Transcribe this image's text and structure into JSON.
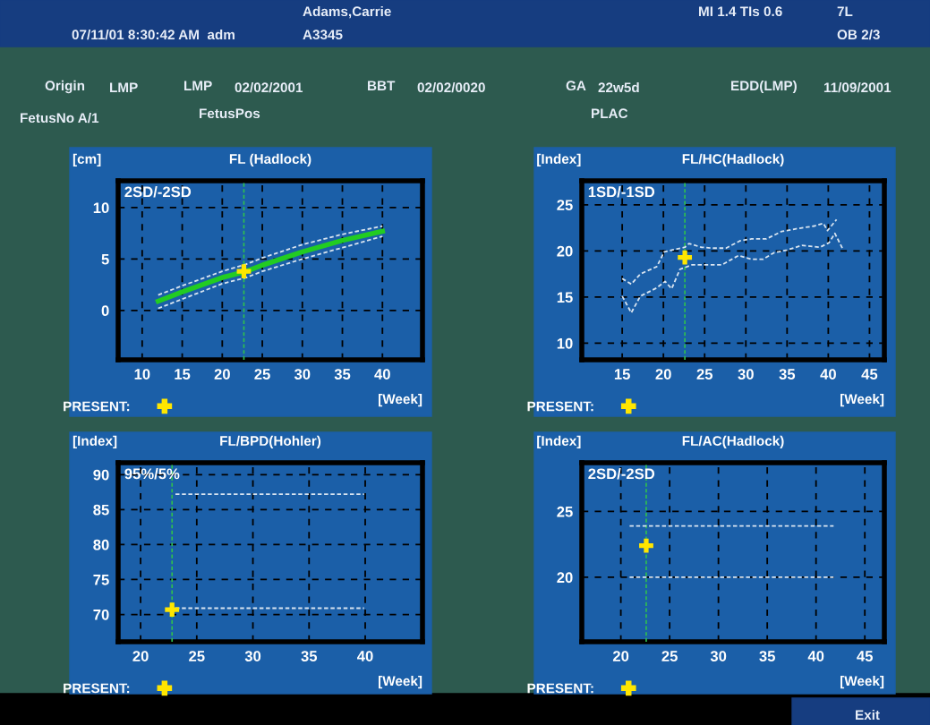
{
  "chart_data": [
    {
      "type": "other",
      "annotations": [
        "07/11/01 8:30:42 AM  adm",
        "Adams,Carrie",
        "A3345",
        "MI 1.4 TIs 0.6",
        "7L",
        "OB 2/3",
        "Origin",
        "LMP",
        "LMP",
        "02/02/2001",
        "BBT",
        "02/02/0020",
        "GA",
        "22w5d",
        "EDD(LMP)",
        "11/09/2001",
        "FetusNo A/1",
        "FetusPos",
        "PLAC",
        "Exit"
      ]
    },
    {
      "type": "line",
      "title": "FL (Hadlock)",
      "ylabel": "[cm]",
      "xlabel": "[Week]",
      "xlim": [
        7,
        45
      ],
      "ylim": [
        -4.8,
        12.6
      ],
      "xticks": [
        10,
        15,
        20,
        25,
        30,
        35,
        40
      ],
      "yticks": [
        0,
        5,
        10
      ],
      "grid": true,
      "legend": "bottom",
      "annotations": [
        "2SD/-2SD"
      ],
      "ref_lines": [
        {
          "axis": "x",
          "value": 22.7,
          "color": "#2fbf4f",
          "line_style": "dashed"
        }
      ],
      "series": [
        {
          "type": "line",
          "color": "#22cc22",
          "x": [
            12,
            15,
            20,
            23,
            25,
            30,
            35,
            40
          ],
          "values": [
            0.9,
            1.8,
            3.2,
            3.8,
            4.4,
            5.7,
            6.8,
            7.7
          ]
        },
        {
          "type": "line",
          "color": "#d8e4f0",
          "line_style": "dashed",
          "x": [
            12,
            15,
            20,
            23,
            25,
            30,
            35,
            40
          ],
          "values": [
            1.5,
            2.4,
            3.8,
            4.5,
            5.1,
            6.4,
            7.4,
            8.2
          ]
        },
        {
          "type": "line",
          "color": "#d8e4f0",
          "line_style": "dashed",
          "x": [
            12,
            15,
            20,
            23,
            25,
            30,
            35,
            40
          ],
          "values": [
            0.2,
            1.1,
            2.6,
            3.2,
            3.8,
            5.0,
            6.1,
            7.2
          ]
        },
        {
          "type": "scatter",
          "name": "PRESENT:",
          "color": "#ffe600",
          "marker": "cross",
          "x": [
            22.7
          ],
          "values": [
            3.8
          ]
        }
      ]
    },
    {
      "type": "line",
      "title": "FL/HC(Hadlock)",
      "ylabel": "[Index]",
      "xlabel": "[Week]",
      "xlim": [
        10.1,
        46.8
      ],
      "ylim": [
        8.2,
        27.6
      ],
      "xticks": [
        15,
        20,
        25,
        30,
        35,
        40,
        45
      ],
      "yticks": [
        10,
        15,
        20,
        25
      ],
      "grid": true,
      "legend": "bottom",
      "annotations": [
        "1SD/-1SD"
      ],
      "ref_lines": [
        {
          "axis": "x",
          "value": 22.6,
          "color": "#2fbf4f",
          "line_style": "dashed"
        }
      ],
      "series": [
        {
          "type": "line",
          "color": "#d8e4f0",
          "line_style": "dashed",
          "x": [
            15,
            16.1,
            17.2,
            19.2,
            20.1,
            22.6,
            23.1,
            24.6,
            26.0,
            27.6,
            29.3,
            30.7,
            32.5,
            34.3,
            36.1,
            38.3,
            39.4,
            39.9,
            41.0
          ],
          "values": [
            17.0,
            16.4,
            17.5,
            18.3,
            19.9,
            20.4,
            20.8,
            20.4,
            20.3,
            20.3,
            21.1,
            21.3,
            21.3,
            22.1,
            22.4,
            22.7,
            23.0,
            22.2,
            23.4
          ]
        },
        {
          "type": "line",
          "color": "#d8e4f0",
          "line_style": "dashed",
          "x": [
            15,
            16.1,
            17.2,
            19.2,
            20.2,
            21.0,
            22.0,
            23.5,
            24.9,
            27.1,
            29.1,
            30.7,
            32.1,
            33.4,
            35.0,
            36.8,
            39.0,
            40.1,
            40.8,
            41.7
          ],
          "values": [
            15.1,
            13.3,
            15.1,
            16.0,
            16.7,
            15.9,
            18.0,
            18.5,
            18.5,
            18.5,
            19.5,
            19.1,
            19.1,
            19.8,
            20.1,
            20.6,
            20.4,
            20.9,
            21.9,
            20.3
          ]
        },
        {
          "type": "scatter",
          "name": "PRESENT:",
          "color": "#ffe600",
          "marker": "cross",
          "x": [
            22.6
          ],
          "values": [
            19.3
          ]
        }
      ]
    },
    {
      "type": "line",
      "title": "FL/BPD(Hohler)",
      "ylabel": "[Index]",
      "xlabel": "[Week]",
      "xlim": [
        18.0,
        45.1
      ],
      "ylim": [
        66.1,
        91.7
      ],
      "xticks": [
        20,
        25,
        30,
        35,
        40
      ],
      "yticks": [
        70,
        75,
        80,
        85,
        90
      ],
      "grid": true,
      "legend": "bottom",
      "annotations": [
        "95%/5%"
      ],
      "ref_lines": [
        {
          "axis": "x",
          "value": 22.8,
          "color": "#2fbf4f",
          "line_style": "dashed"
        }
      ],
      "series": [
        {
          "type": "line",
          "color": "#d8e4f0",
          "line_style": "dashed",
          "x": [
            23.1,
            39.9
          ],
          "values": [
            87.2,
            87.2
          ]
        },
        {
          "type": "line",
          "color": "#d8e4f0",
          "line_style": "dashed",
          "x": [
            23.1,
            39.9
          ],
          "values": [
            70.9,
            70.9
          ]
        },
        {
          "type": "scatter",
          "name": "PRESENT:",
          "color": "#ffe600",
          "marker": "cross",
          "x": [
            22.8
          ],
          "values": [
            70.7
          ]
        }
      ]
    },
    {
      "type": "line",
      "title": "FL/AC(Hadlock)",
      "ylabel": "[Index]",
      "xlabel": "[Week]",
      "xlim": [
        16.0,
        47.0
      ],
      "ylim": [
        15.1,
        28.7
      ],
      "xticks": [
        20,
        25,
        30,
        35,
        40,
        45
      ],
      "yticks": [
        20,
        25
      ],
      "grid": true,
      "legend": "bottom",
      "annotations": [
        "2SD/-2SD"
      ],
      "ref_lines": [
        {
          "axis": "x",
          "value": 22.6,
          "color": "#2fbf4f",
          "line_style": "dashed"
        }
      ],
      "series": [
        {
          "type": "line",
          "color": "#d8e4f0",
          "line_style": "dashed",
          "x": [
            20.9,
            41.8
          ],
          "values": [
            23.9,
            23.9
          ]
        },
        {
          "type": "line",
          "color": "#d8e4f0",
          "line_style": "dashed",
          "x": [
            20.9,
            41.8
          ],
          "values": [
            20.0,
            20.0
          ]
        },
        {
          "type": "scatter",
          "name": "PRESENT:",
          "color": "#ffe600",
          "marker": "cross",
          "x": [
            22.6
          ],
          "values": [
            22.4
          ]
        }
      ]
    }
  ]
}
